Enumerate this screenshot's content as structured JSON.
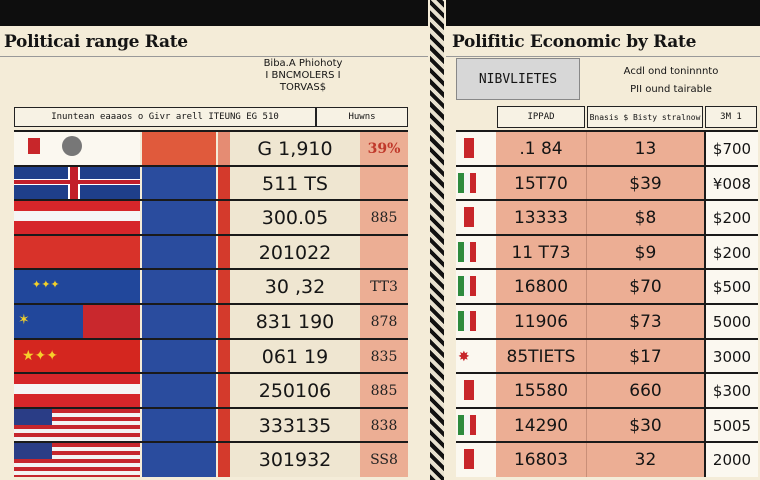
{
  "left": {
    "title": "Politicai range Rate",
    "subtitle_lines": [
      "Biba.A Phiohoty",
      "I BNCMOLERS I",
      "TORVAS$"
    ],
    "header_main": "Inuntean eaaaos o Givr arell ITEUNG EG 510",
    "header_right": "Huwns",
    "rows": [
      {
        "value": "G 1,910",
        "pct": "39%",
        "flag": "icon-flag"
      },
      {
        "value": "511 TS",
        "pct": "",
        "flag": "uk-flag"
      },
      {
        "value": "300.05",
        "pct": "885",
        "flag": "red-white-flag"
      },
      {
        "value": "201022",
        "pct": "",
        "flag": "red-flag"
      },
      {
        "value": "30 ,32",
        "pct": "TT3",
        "flag": "eu-flag"
      },
      {
        "value": "831 190",
        "pct": "878",
        "flag": "eu-flag-stripes"
      },
      {
        "value": "061 19",
        "pct": "835",
        "flag": "china-flag"
      },
      {
        "value": "250106",
        "pct": "885",
        "flag": "red-white-flag"
      },
      {
        "value": "333135",
        "pct": "838",
        "flag": "usa-flag"
      },
      {
        "value": "301932",
        "pct": "SS8",
        "flag": "usa-flag"
      }
    ]
  },
  "right": {
    "title": "Polifitic Economic by Rate",
    "gray_box": "NIBVLIETES",
    "header_top_lines": [
      "Acdl ond toninnnto",
      "PII ound tairable"
    ],
    "col_headers": [
      "IPPAD",
      "Bnasis $ Bisty stralnow",
      "3M 1"
    ],
    "rows": [
      {
        "a": ".1 84",
        "b": "13",
        "c": "$700",
        "flag": "red"
      },
      {
        "a": "15T70",
        "b": "$39",
        "c": "¥008",
        "flag": "italy"
      },
      {
        "a": "13333",
        "b": "$8",
        "c": "$200",
        "flag": "red"
      },
      {
        "a": "11 T73",
        "b": "$9",
        "c": "$200",
        "flag": "italy"
      },
      {
        "a": "16800",
        "b": "$70",
        "c": "$500",
        "flag": "italy"
      },
      {
        "a": "11906",
        "b": "$73",
        "c": "5000",
        "flag": "italy"
      },
      {
        "a": "85TIETS",
        "b": "$17",
        "c": "3000",
        "flag": "china"
      },
      {
        "a": "15580",
        "b": "660",
        "c": "$300",
        "flag": "red"
      },
      {
        "a": "14290",
        "b": "$30",
        "c": "5005",
        "flag": "italy"
      },
      {
        "a": "16803",
        "b": "32",
        "c": "2000",
        "flag": "red"
      }
    ]
  }
}
